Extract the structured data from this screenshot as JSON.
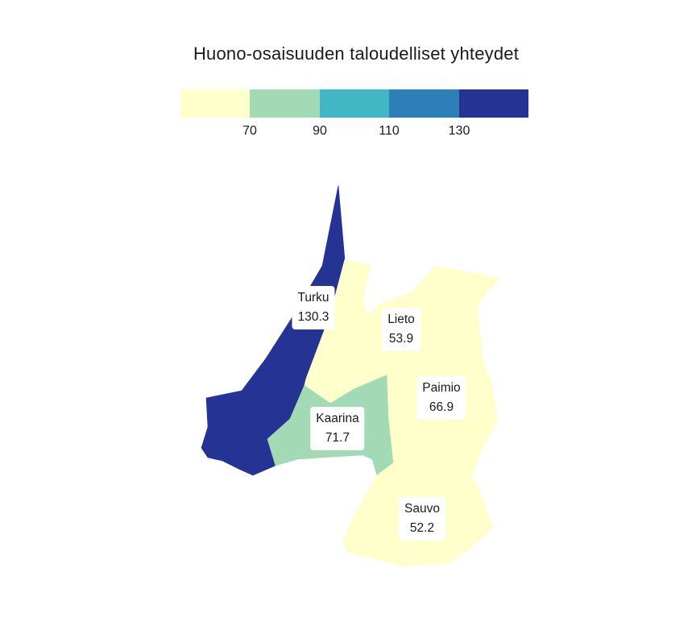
{
  "title": "Huono-osaisuuden taloudelliset yhteydet",
  "colors": {
    "c1": "#ffffcc",
    "c2": "#a1dab4",
    "c3": "#41b6c4",
    "c4": "#2c7fb8",
    "c5": "#253494"
  },
  "legend": {
    "ticks": [
      "70",
      "90",
      "110",
      "130"
    ]
  },
  "regions": {
    "turku": {
      "name": "Turku",
      "value": "130.3"
    },
    "lieto": {
      "name": "Lieto",
      "value": "53.9"
    },
    "paimio": {
      "name": "Paimio",
      "value": "66.9"
    },
    "kaarina": {
      "name": "Kaarina",
      "value": "71.7"
    },
    "sauvo": {
      "name": "Sauvo",
      "value": "52.2"
    }
  }
}
